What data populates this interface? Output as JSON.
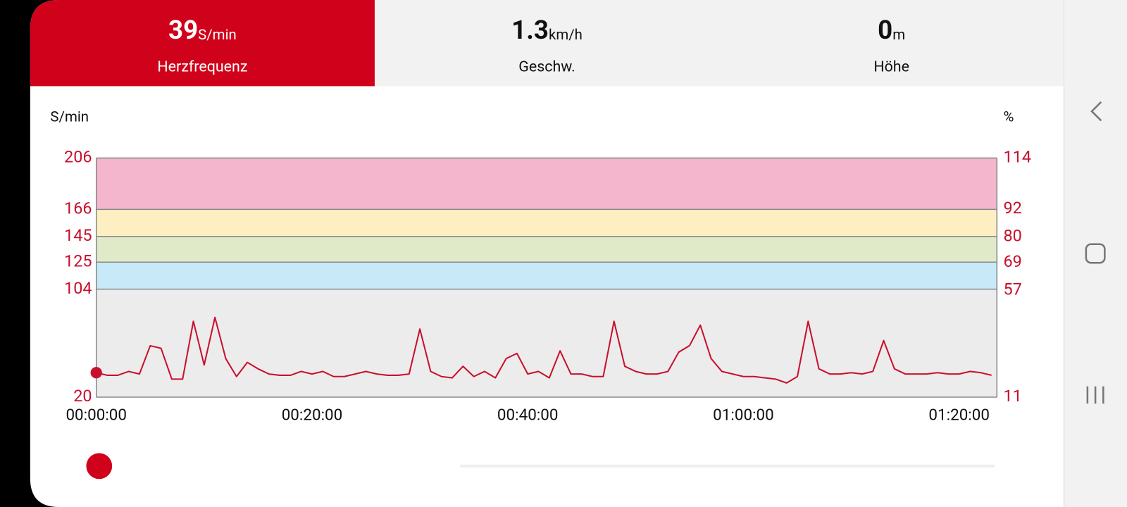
{
  "tabs": [
    {
      "value": 39,
      "unit": "S/min",
      "label": "Herzfrequenz"
    },
    {
      "value": 1.3,
      "unit": "km/h",
      "label": "Geschw."
    },
    {
      "value": 0,
      "unit": "m",
      "label": "Höhe"
    }
  ],
  "selected_tab": 0,
  "chart_data": {
    "type": "line",
    "ylabel": "S/min",
    "y2label": "%",
    "x": [
      0,
      1,
      2,
      3,
      4,
      5,
      6,
      7,
      8,
      9,
      10,
      11,
      12,
      13,
      14,
      15,
      16,
      17,
      18,
      19,
      20,
      21,
      22,
      23,
      24,
      25,
      26,
      27,
      28,
      29,
      30,
      31,
      32,
      33,
      34,
      35,
      36,
      37,
      38,
      39,
      40,
      41,
      42,
      43,
      44,
      45,
      46,
      47,
      48,
      49,
      50,
      51,
      52,
      53,
      54,
      55,
      56,
      57,
      58,
      59,
      60,
      61,
      62,
      63,
      64,
      65,
      66,
      67,
      68,
      69,
      70,
      71,
      72,
      73,
      74,
      75,
      76,
      77,
      78,
      79,
      80,
      81,
      82,
      83
    ],
    "values": [
      39,
      37,
      37,
      40,
      38,
      60,
      58,
      34,
      34,
      79,
      45,
      82,
      50,
      36,
      47,
      42,
      38,
      37,
      37,
      40,
      38,
      40,
      36,
      36,
      38,
      40,
      38,
      37,
      37,
      38,
      73,
      40,
      36,
      35,
      44,
      36,
      40,
      35,
      50,
      54,
      38,
      40,
      35,
      56,
      38,
      38,
      36,
      36,
      79,
      44,
      40,
      38,
      38,
      40,
      55,
      60,
      76,
      50,
      40,
      38,
      36,
      36,
      35,
      34,
      31,
      36,
      79,
      42,
      38,
      38,
      39,
      38,
      40,
      64,
      42,
      38,
      38,
      38,
      39,
      38,
      38,
      40,
      39,
      37
    ],
    "color": "#c8102e",
    "xlim": [
      0,
      83.5
    ],
    "xticks": [
      {
        "value": 0,
        "label": "00:00:00"
      },
      {
        "value": 20,
        "label": "00:20:00"
      },
      {
        "value": 40,
        "label": "00:40:00"
      },
      {
        "value": 60,
        "label": "01:00:00"
      },
      {
        "value": 80,
        "label": "01:20:00"
      }
    ],
    "ylim": [
      20,
      206
    ],
    "yticks": [
      20,
      104,
      125,
      145,
      166,
      206
    ],
    "y2lim": [
      11,
      114
    ],
    "y2ticks": [
      11,
      57,
      69,
      80,
      92,
      114
    ],
    "zones": [
      {
        "from": 20,
        "to": 104,
        "color": "#ececec"
      },
      {
        "from": 104,
        "to": 125,
        "color": "#c8eaf8"
      },
      {
        "from": 125,
        "to": 145,
        "color": "#e1eac8"
      },
      {
        "from": 145,
        "to": 166,
        "color": "#fdefc2"
      },
      {
        "from": 166,
        "to": 206,
        "color": "#f4b6cd"
      }
    ]
  }
}
